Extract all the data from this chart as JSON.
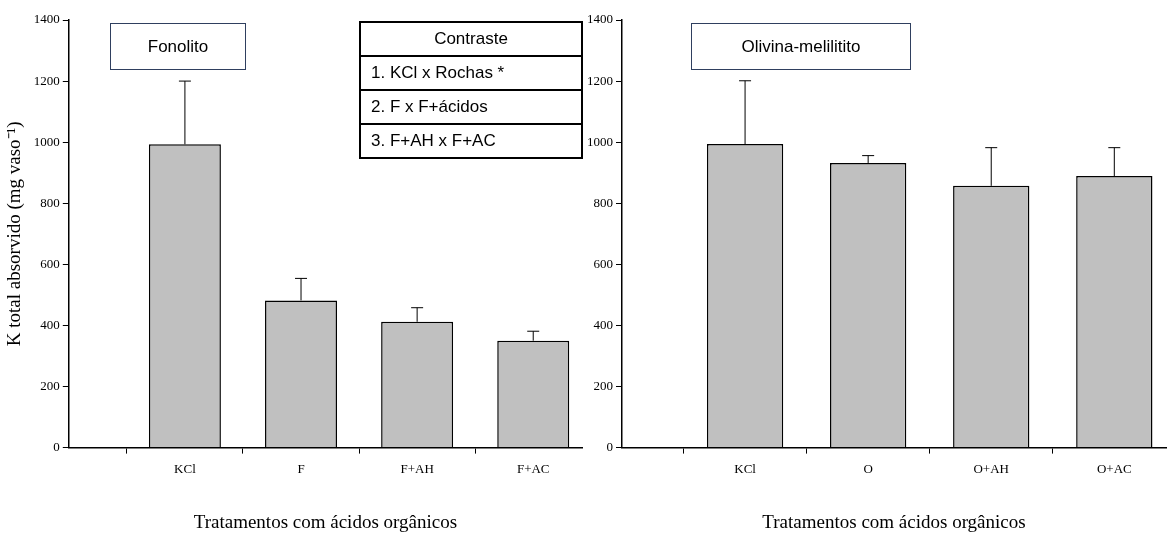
{
  "chart_data": [
    {
      "type": "bar",
      "ylabel": "K total absorvido (mg vaso⁻¹)",
      "xlabel": "Tratamentos com ácidos orgânicos",
      "categories": [
        "KCl",
        "F",
        "F+AH",
        "F+AC"
      ],
      "values": [
        993,
        482,
        412,
        350
      ],
      "errors": [
        [
          993,
          1200
        ],
        [
          482,
          554
        ],
        [
          412,
          458
        ],
        [
          350,
          381
        ]
      ],
      "color": "#c0c0c0",
      "ylim": [
        0,
        1400
      ],
      "yticks": [
        0,
        200,
        400,
        600,
        800,
        1000,
        1200,
        1400
      ],
      "grid": false,
      "legend": false,
      "annotations": [
        "Fonolito",
        "Contraste",
        "1. KCl x Rochas *",
        "2. F x F+ácidos",
        "3. F+AH x F+AC"
      ]
    },
    {
      "type": "bar",
      "xlabel": "Tratamentos com ácidos orgânicos",
      "categories": [
        "KCl",
        "O",
        "O+AH",
        "O+AC"
      ],
      "values": [
        994,
        932,
        857,
        889
      ],
      "errors": [
        [
          994,
          1201
        ],
        [
          932,
          956
        ],
        [
          857,
          982
        ],
        [
          889,
          982
        ]
      ],
      "color": "#c0c0c0",
      "ylim": [
        0,
        1400
      ],
      "yticks": [
        0,
        200,
        400,
        600,
        800,
        1000,
        1200,
        1400
      ],
      "grid": false,
      "legend": false,
      "annotations": [
        "Olivina-melilitito"
      ]
    }
  ]
}
